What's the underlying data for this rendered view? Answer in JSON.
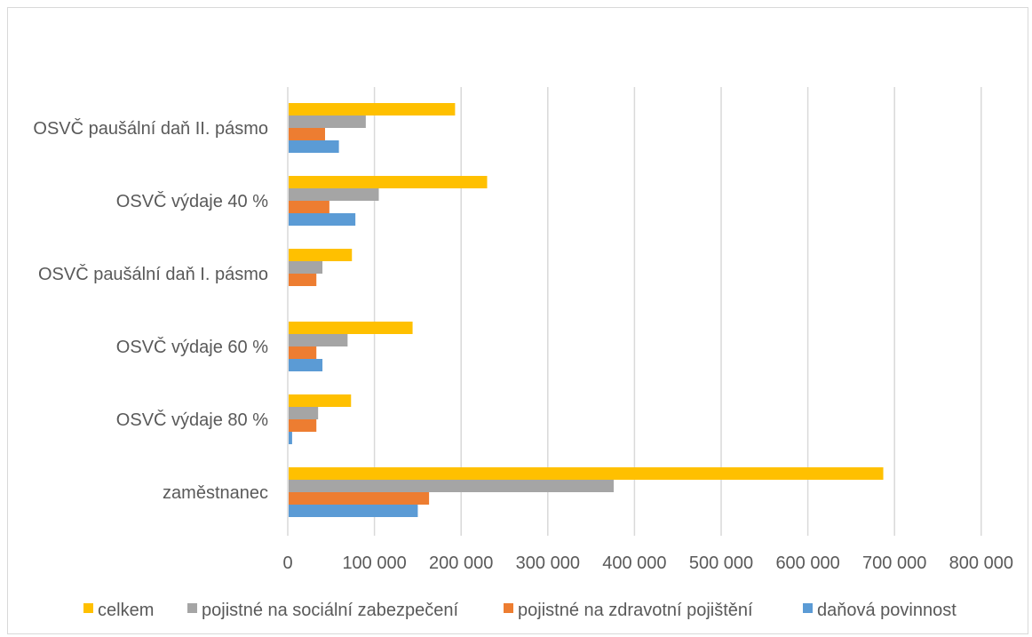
{
  "chart_data": {
    "type": "bar",
    "orientation": "horizontal",
    "categories": [
      "zaměstnanec",
      "OSVČ výdaje 80 %",
      "OSVČ výdaje 60 %",
      "OSVČ paušální daň I. pásmo",
      "OSVČ výdaje 40 %",
      "OSVČ paušální daň II. pásmo"
    ],
    "series": [
      {
        "name": "celkem",
        "color": "#FFC000",
        "values": [
          686000,
          72000,
          143000,
          73000,
          229000,
          192000
        ]
      },
      {
        "name": "pojistné na sociální zabezpečení",
        "color": "#A5A5A5",
        "values": [
          375000,
          34000,
          68000,
          39000,
          104000,
          89000
        ]
      },
      {
        "name": "pojistné na zdravotní pojištění",
        "color": "#ED7D31",
        "values": [
          162000,
          32000,
          32000,
          32000,
          47000,
          42000
        ]
      },
      {
        "name": "daňová povinnost",
        "color": "#5B9BD5",
        "values": [
          149000,
          4000,
          39000,
          0,
          77000,
          58000
        ]
      }
    ],
    "x_ticks": [
      "0",
      "100 000",
      "200 000",
      "300 000",
      "400 000",
      "500 000",
      "600 000",
      "700 000",
      "800 000"
    ],
    "xlim": [
      0,
      800000
    ],
    "grid": true,
    "legend_position": "bottom"
  }
}
